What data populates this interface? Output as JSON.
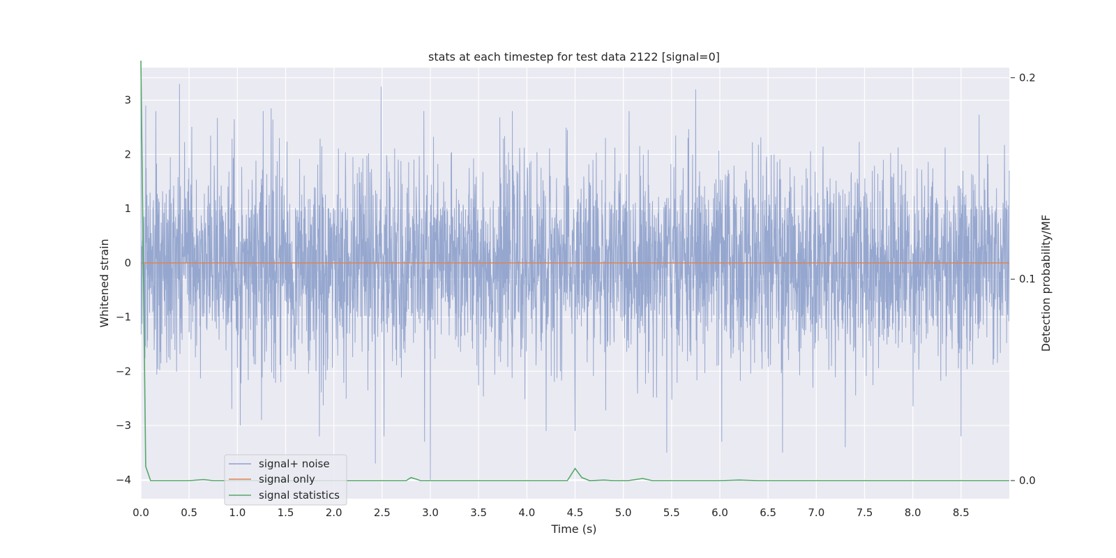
{
  "chart_data": {
    "type": "line",
    "title": "stats at each timestep for test data 2122 [signal=0]",
    "xlabel": "Time (s)",
    "ylabel": "Whitened strain",
    "ylabel_right": "Detection probability/MF",
    "xlim": [
      0.0,
      9.0
    ],
    "ylim": [
      -4.35,
      3.6
    ],
    "ylim_right": [
      -0.009,
      0.205
    ],
    "xticks": [
      "0.0",
      "0.5",
      "1.0",
      "1.5",
      "2.0",
      "2.5",
      "3.0",
      "3.5",
      "4.0",
      "4.5",
      "5.0",
      "5.5",
      "6.0",
      "6.5",
      "7.0",
      "7.5",
      "8.0",
      "8.5"
    ],
    "yticks": [
      "3",
      "2",
      "1",
      "0",
      "−1",
      "−2",
      "−3",
      "−4"
    ],
    "yticks_right": [
      "0.2",
      "0.1",
      "0.0"
    ],
    "grid": true,
    "legend_position": "lower-left",
    "colors": {
      "noise": "#8da0cb",
      "signal": "#dd8452",
      "stats": "#55a868",
      "background": "#eaeaf2",
      "grid": "#ffffff"
    },
    "series": [
      {
        "name": "signal+ noise",
        "axis": "left",
        "description_only_for_render": "dense whitened noise, roughly gaussian",
        "x": [
          0.0,
          0.05,
          0.4,
          1.03,
          1.35,
          1.85,
          2.43,
          2.49,
          2.52,
          2.94,
          3.0,
          4.2,
          4.5,
          5.45,
          5.75,
          6.02,
          6.65,
          7.3,
          8.5,
          9.0
        ],
        "y": [
          3.3,
          2.9,
          3.3,
          -3.0,
          2.85,
          -3.2,
          -3.7,
          3.25,
          -3.2,
          -3.3,
          -4.0,
          -3.1,
          -3.1,
          -3.5,
          3.2,
          -3.3,
          -3.5,
          -3.4,
          -3.2,
          1.7
        ]
      },
      {
        "name": "signal only",
        "axis": "left",
        "x": [
          0.0,
          9.0
        ],
        "y": [
          0.0,
          0.0
        ]
      },
      {
        "name": "signal statistics",
        "axis": "right",
        "x": [
          0.0,
          0.05,
          0.1,
          0.3,
          0.5,
          0.65,
          0.75,
          1.0,
          2.0,
          2.75,
          2.8,
          2.9,
          3.0,
          4.0,
          4.42,
          4.5,
          4.57,
          4.65,
          4.8,
          4.9,
          5.05,
          5.2,
          5.3,
          6.0,
          6.2,
          6.4,
          7.0,
          8.0,
          9.0
        ],
        "y": [
          0.21,
          0.007,
          0.0,
          0.0,
          0.0,
          0.0005,
          0.0,
          0.0,
          0.0,
          0.0,
          0.0015,
          0.0,
          0.0,
          0.0,
          0.0,
          0.006,
          0.0015,
          0.0,
          0.0003,
          0.0,
          0.0,
          0.001,
          0.0,
          0.0,
          0.0003,
          0.0,
          0.0,
          0.0,
          0.0
        ]
      }
    ]
  }
}
